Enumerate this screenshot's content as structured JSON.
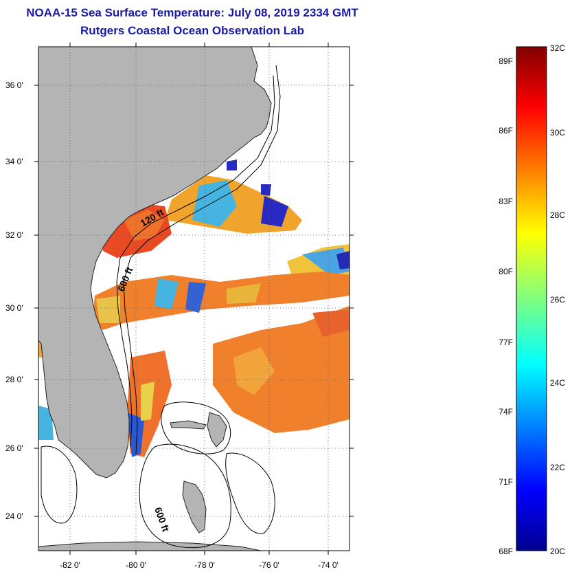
{
  "title": {
    "line1": "NOAA-15 Sea Surface Temperature:  July 08, 2019 2334 GMT",
    "line2": "Rutgers Coastal Ocean Observation Lab"
  },
  "map": {
    "lat_labels": [
      "36 0'",
      "34 0'",
      "32 0'",
      "30 0'",
      "28 0'",
      "26 0'",
      "24 0'"
    ],
    "lon_labels": [
      "-82 0'",
      "-80 0'",
      "-78 0'",
      "-76 0'",
      "-74 0'"
    ],
    "contour_labels": [
      "120 ft",
      "600 ft",
      "600 ft"
    ],
    "land_color": "#b4b4b4",
    "bathymetry_color": "#000000"
  },
  "colorbar": {
    "fahrenheit_labels": [
      "89F",
      "86F",
      "83F",
      "80F",
      "77F",
      "74F",
      "71F",
      "68F"
    ],
    "celsius_labels": [
      "32C",
      "30C",
      "28C",
      "26C",
      "24C",
      "22C",
      "20C"
    ],
    "range_c": [
      20,
      32
    ],
    "colormap": "jet"
  }
}
